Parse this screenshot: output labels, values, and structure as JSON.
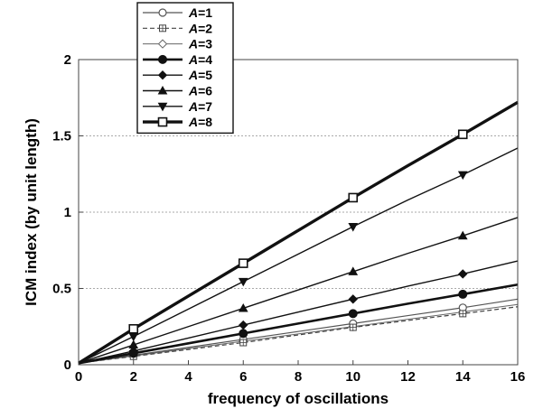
{
  "chart_data": {
    "type": "line",
    "xlabel": "frequency of oscillations",
    "ylabel": "ICM index (by unit length)",
    "xlim": [
      0,
      16
    ],
    "ylim": [
      0,
      2
    ],
    "xticks": [
      "0",
      "2",
      "4",
      "6",
      "8",
      "10",
      "12",
      "14",
      "16"
    ],
    "yticks": [
      "0",
      "0.5",
      "1",
      "1.5",
      "2"
    ],
    "grid": "horizontal dotted",
    "legend_position": "top-left",
    "x": [
      0,
      2,
      4,
      6,
      8,
      10,
      12,
      14,
      16
    ],
    "series": [
      {
        "name": "A=1",
        "label_var": "A",
        "label_val": "=1",
        "marker": "circle-open",
        "dash": "solid",
        "width": 1.2,
        "color": "#555555",
        "values": [
          0.01,
          0.062,
          0.114,
          0.166,
          0.218,
          0.27,
          0.322,
          0.374,
          0.43
        ]
      },
      {
        "name": "A=2",
        "label_var": "A",
        "label_val": "=2",
        "marker": "square-cross",
        "dash": "dashed",
        "width": 1.2,
        "color": "#444444",
        "values": [
          0.01,
          0.055,
          0.1,
          0.145,
          0.195,
          0.245,
          0.29,
          0.335,
          0.38
        ]
      },
      {
        "name": "A=3",
        "label_var": "A",
        "label_val": "=3",
        "marker": "diamond-open",
        "dash": "solid",
        "width": 1.0,
        "color": "#666666",
        "values": [
          0.01,
          0.058,
          0.106,
          0.154,
          0.202,
          0.25,
          0.298,
          0.346,
          0.395
        ]
      },
      {
        "name": "A=4",
        "label_var": "A",
        "label_val": "=4",
        "marker": "circle-filled",
        "dash": "solid",
        "width": 2.6,
        "color": "#111111",
        "values": [
          0.01,
          0.075,
          0.14,
          0.205,
          0.27,
          0.335,
          0.4,
          0.462,
          0.525
        ]
      },
      {
        "name": "A=5",
        "label_var": "A",
        "label_val": "=5",
        "marker": "diamond-filled",
        "dash": "solid",
        "width": 1.4,
        "color": "#111111",
        "values": [
          0.01,
          0.09,
          0.175,
          0.26,
          0.345,
          0.43,
          0.515,
          0.595,
          0.68
        ]
      },
      {
        "name": "A=6",
        "label_var": "A",
        "label_val": "=6",
        "marker": "triangle-up",
        "dash": "solid",
        "width": 1.4,
        "color": "#111111",
        "values": [
          0.01,
          0.13,
          0.25,
          0.37,
          0.49,
          0.61,
          0.73,
          0.845,
          0.965
        ]
      },
      {
        "name": "A=7",
        "label_var": "A",
        "label_val": "=7",
        "marker": "triangle-down",
        "dash": "solid",
        "width": 1.4,
        "color": "#111111",
        "values": [
          0.01,
          0.185,
          0.365,
          0.545,
          0.725,
          0.905,
          1.08,
          1.245,
          1.42
        ]
      },
      {
        "name": "A=8",
        "label_var": "A",
        "label_val": "=8",
        "marker": "square-open",
        "dash": "solid",
        "width": 3.4,
        "color": "#111111",
        "values": [
          0.01,
          0.235,
          0.45,
          0.665,
          0.88,
          1.095,
          1.305,
          1.51,
          1.72
        ]
      }
    ]
  }
}
